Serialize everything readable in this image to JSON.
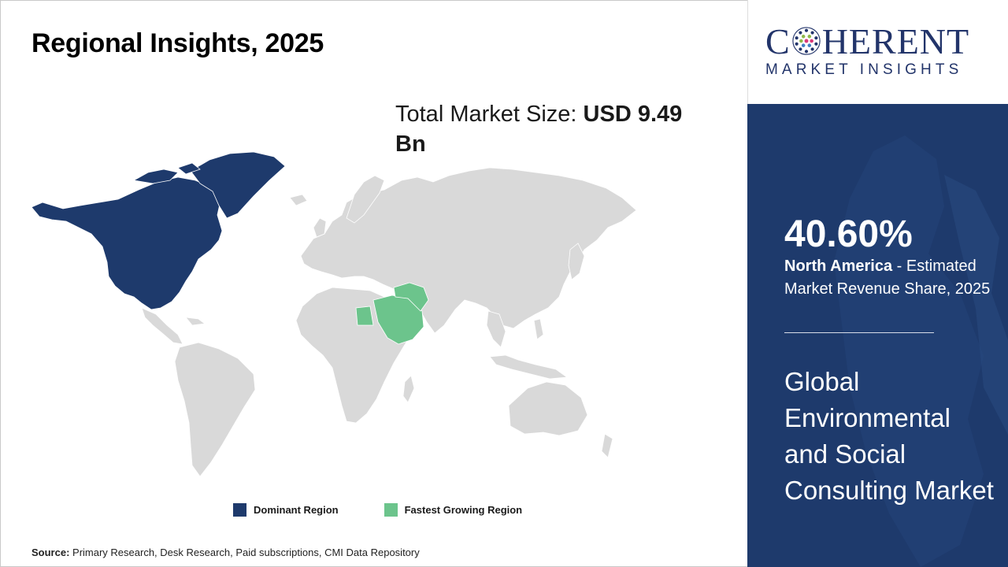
{
  "title": "Regional Insights, 2025",
  "market_size": {
    "label": "Total Market Size:",
    "value": "USD 9.49 Bn"
  },
  "legend": {
    "dominant": {
      "label": "Dominant Region",
      "color": "#1e3a6c"
    },
    "fastest": {
      "label": "Fastest Growing Region",
      "color": "#6cc48c"
    }
  },
  "map": {
    "base_color": "#d9d9d9",
    "dominant_region": "North America",
    "fastest_growing_region": "Middle East"
  },
  "source": {
    "label": "Source:",
    "text": "Primary Research, Desk Research, Paid subscriptions, CMI Data Repository"
  },
  "logo": {
    "brand_start": "C",
    "brand_end": "HERENT",
    "tagline": "MARKET INSIGHTS"
  },
  "panel": {
    "share": "40.60%",
    "region": "North America",
    "share_desc": "- Estimated Market Revenue Share, 2025",
    "market_name": "Global Environmental and Social Consulting Market"
  }
}
